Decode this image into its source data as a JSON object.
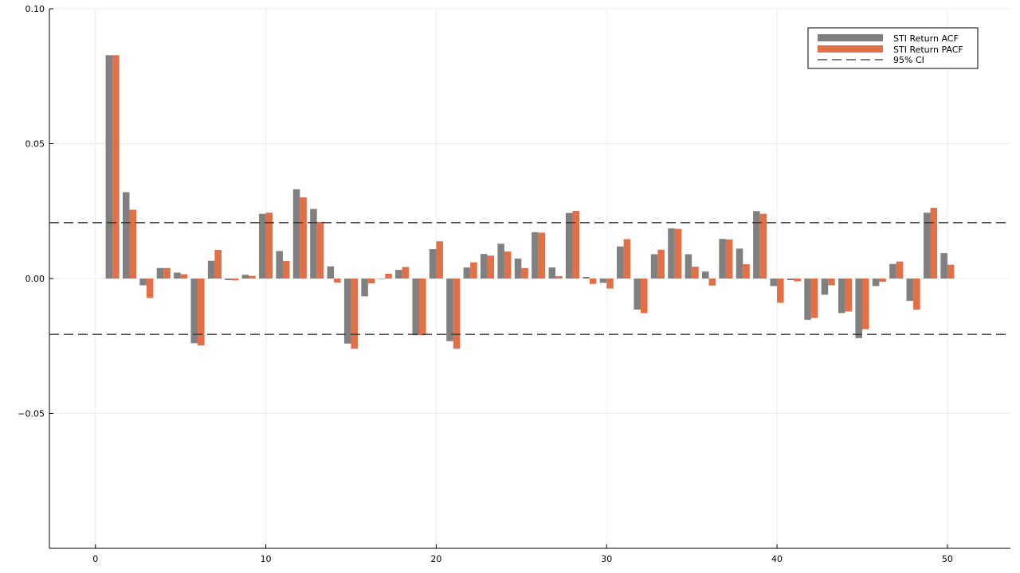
{
  "chart_data": {
    "type": "bar",
    "title": "",
    "xlabel": "",
    "ylabel": "",
    "xlim": [
      -2.7,
      53.7
    ],
    "ylim": [
      -0.1,
      0.1
    ],
    "xticks": [
      0,
      10,
      20,
      30,
      40,
      50
    ],
    "yticks": [
      -0.05,
      0.0,
      0.05,
      0.1
    ],
    "xtick_labels": [
      "0",
      "10",
      "20",
      "30",
      "40",
      "50"
    ],
    "ytick_labels": [
      "−0.05",
      "0.00",
      "0.05",
      "0.10"
    ],
    "grid": true,
    "legend_position": "top-right",
    "lags": [
      1,
      2,
      3,
      4,
      5,
      6,
      7,
      8,
      9,
      10,
      11,
      12,
      13,
      14,
      15,
      16,
      17,
      18,
      19,
      20,
      21,
      22,
      23,
      24,
      25,
      26,
      27,
      28,
      29,
      30,
      31,
      32,
      33,
      34,
      35,
      36,
      37,
      38,
      39,
      40,
      41,
      42,
      43,
      44,
      45,
      46,
      47,
      48,
      49,
      50
    ],
    "series": [
      {
        "name": "STI Return ACF",
        "color": "#808080",
        "values": [
          0.0828,
          0.032,
          -0.0025,
          0.0039,
          0.0022,
          -0.024,
          0.0066,
          -0.0006,
          0.0014,
          0.024,
          0.0102,
          0.0331,
          0.0258,
          0.0045,
          -0.0241,
          -0.0066,
          0.0,
          0.0032,
          -0.021,
          0.0109,
          -0.0232,
          0.0041,
          0.0091,
          0.0129,
          0.0074,
          0.0172,
          0.0041,
          0.0243,
          0.0006,
          -0.0016,
          0.0119,
          -0.0115,
          0.009,
          0.0186,
          0.009,
          0.0026,
          0.0147,
          0.0111,
          0.025,
          -0.0028,
          -0.0006,
          -0.0153,
          -0.006,
          -0.0128,
          -0.0221,
          -0.0028,
          0.0054,
          -0.0083,
          0.0244,
          0.0094
        ]
      },
      {
        "name": "STI Return PACF",
        "color": "#e26f46",
        "values": [
          0.0828,
          0.0255,
          -0.0072,
          0.0039,
          0.0016,
          -0.0248,
          0.0106,
          -0.0007,
          0.001,
          0.0244,
          0.0065,
          0.0301,
          0.021,
          -0.0015,
          -0.026,
          -0.0018,
          0.0018,
          0.0043,
          -0.021,
          0.0138,
          -0.026,
          0.006,
          0.0085,
          0.01,
          0.0039,
          0.017,
          0.0009,
          0.0251,
          -0.002,
          -0.0037,
          0.0146,
          -0.0128,
          0.0107,
          0.0184,
          0.0044,
          -0.0026,
          0.0145,
          0.0053,
          0.024,
          -0.009,
          -0.001,
          -0.0146,
          -0.0025,
          -0.0122,
          -0.0188,
          -0.0012,
          0.0063,
          -0.0115,
          0.0262,
          0.0051
        ]
      }
    ],
    "ci": {
      "name": "95% CI",
      "color": "#333333",
      "value": 0.0207
    }
  }
}
